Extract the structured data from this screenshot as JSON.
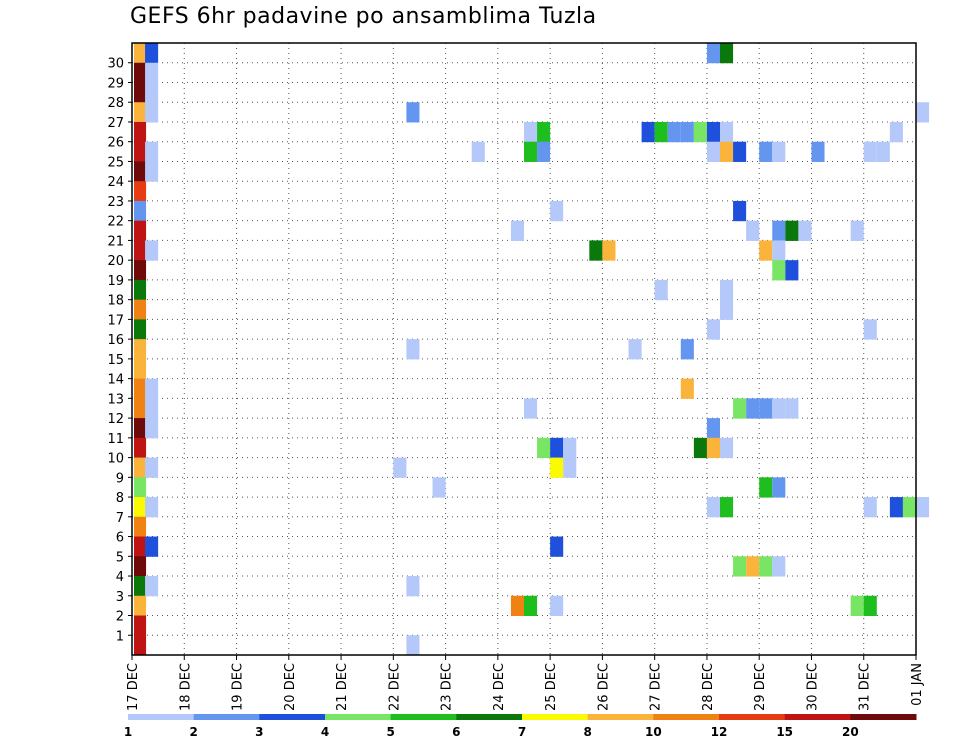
{
  "chart_data": {
    "type": "heatmap",
    "title": "GEFS 6hr padavine po ansamblima Tuzla",
    "x_start": "17 DEC",
    "x_end": "01 JAN",
    "x_ticks": [
      "17 DEC",
      "18 DEC",
      "19 DEC",
      "20 DEC",
      "21 DEC",
      "22 DEC",
      "23 DEC",
      "24 DEC",
      "25 DEC",
      "26 DEC",
      "27 DEC",
      "28 DEC",
      "29 DEC",
      "30 DEC",
      "31 DEC",
      "01 JAN"
    ],
    "x_step_hours": 6,
    "y_ticks": [
      "1",
      "2",
      "3",
      "4",
      "5",
      "6",
      "7",
      "8",
      "9",
      "10",
      "11",
      "12",
      "13",
      "14",
      "15",
      "16",
      "17",
      "18",
      "19",
      "20",
      "21",
      "22",
      "23",
      "24",
      "25",
      "26",
      "27",
      "28",
      "29",
      "30"
    ],
    "grid": true,
    "legend_position": "bottom",
    "levels": [
      {
        "label": "1",
        "color": "#b4c8fa"
      },
      {
        "label": "2",
        "color": "#6496f0"
      },
      {
        "label": "3",
        "color": "#1e50dc"
      },
      {
        "label": "4",
        "color": "#78e664"
      },
      {
        "label": "5",
        "color": "#1ebe1e"
      },
      {
        "label": "6",
        "color": "#0a780a"
      },
      {
        "label": "7",
        "color": "#fafa00"
      },
      {
        "label": "8",
        "color": "#fab43c"
      },
      {
        "label": "10",
        "color": "#f08214"
      },
      {
        "label": "12",
        "color": "#e63c14"
      },
      {
        "label": "15",
        "color": "#be1414"
      },
      {
        "label": "20",
        "color": "#6e0a0a"
      }
    ],
    "cells": [
      {
        "member": 30,
        "step": 0,
        "level": 7
      },
      {
        "member": 30,
        "step": 1,
        "level": 2
      },
      {
        "member": 30,
        "step": 44,
        "level": 1
      },
      {
        "member": 30,
        "step": 45,
        "level": 5
      },
      {
        "member": 29,
        "step": 0,
        "level": 11
      },
      {
        "member": 29,
        "step": 1,
        "level": 0
      },
      {
        "member": 28,
        "step": 0,
        "level": 11
      },
      {
        "member": 28,
        "step": 1,
        "level": 0
      },
      {
        "member": 27,
        "step": 0,
        "level": 7
      },
      {
        "member": 27,
        "step": 1,
        "level": 0
      },
      {
        "member": 27,
        "step": 21,
        "level": 1
      },
      {
        "member": 27,
        "step": 60,
        "level": 0
      },
      {
        "member": 26,
        "step": 0,
        "level": 10
      },
      {
        "member": 26,
        "step": 30,
        "level": 0
      },
      {
        "member": 26,
        "step": 31,
        "level": 4
      },
      {
        "member": 26,
        "step": 39,
        "level": 2
      },
      {
        "member": 26,
        "step": 40,
        "level": 4
      },
      {
        "member": 26,
        "step": 41,
        "level": 1
      },
      {
        "member": 26,
        "step": 42,
        "level": 1
      },
      {
        "member": 26,
        "step": 43,
        "level": 3
      },
      {
        "member": 26,
        "step": 44,
        "level": 2
      },
      {
        "member": 26,
        "step": 45,
        "level": 0
      },
      {
        "member": 26,
        "step": 58,
        "level": 0
      },
      {
        "member": 25,
        "step": 0,
        "level": 10
      },
      {
        "member": 25,
        "step": 1,
        "level": 0
      },
      {
        "member": 25,
        "step": 26,
        "level": 0
      },
      {
        "member": 25,
        "step": 30,
        "level": 4
      },
      {
        "member": 25,
        "step": 31,
        "level": 1
      },
      {
        "member": 25,
        "step": 44,
        "level": 0
      },
      {
        "member": 25,
        "step": 45,
        "level": 7
      },
      {
        "member": 25,
        "step": 46,
        "level": 2
      },
      {
        "member": 25,
        "step": 48,
        "level": 1
      },
      {
        "member": 25,
        "step": 49,
        "level": 0
      },
      {
        "member": 25,
        "step": 52,
        "level": 1
      },
      {
        "member": 25,
        "step": 56,
        "level": 0
      },
      {
        "member": 25,
        "step": 57,
        "level": 0
      },
      {
        "member": 24,
        "step": 0,
        "level": 11
      },
      {
        "member": 24,
        "step": 1,
        "level": 0
      },
      {
        "member": 23,
        "step": 0,
        "level": 9
      },
      {
        "member": 22,
        "step": 0,
        "level": 1
      },
      {
        "member": 22,
        "step": 32,
        "level": 0
      },
      {
        "member": 22,
        "step": 46,
        "level": 2
      },
      {
        "member": 21,
        "step": 0,
        "level": 10
      },
      {
        "member": 21,
        "step": 29,
        "level": 0
      },
      {
        "member": 21,
        "step": 47,
        "level": 0
      },
      {
        "member": 21,
        "step": 49,
        "level": 1
      },
      {
        "member": 21,
        "step": 50,
        "level": 5
      },
      {
        "member": 21,
        "step": 51,
        "level": 0
      },
      {
        "member": 21,
        "step": 55,
        "level": 0
      },
      {
        "member": 20,
        "step": 0,
        "level": 10
      },
      {
        "member": 20,
        "step": 1,
        "level": 0
      },
      {
        "member": 20,
        "step": 35,
        "level": 5
      },
      {
        "member": 20,
        "step": 36,
        "level": 7
      },
      {
        "member": 20,
        "step": 48,
        "level": 7
      },
      {
        "member": 20,
        "step": 49,
        "level": 0
      },
      {
        "member": 19,
        "step": 0,
        "level": 11
      },
      {
        "member": 19,
        "step": 49,
        "level": 3
      },
      {
        "member": 19,
        "step": 50,
        "level": 2
      },
      {
        "member": 18,
        "step": 0,
        "level": 5
      },
      {
        "member": 18,
        "step": 40,
        "level": 0
      },
      {
        "member": 18,
        "step": 45,
        "level": 0
      },
      {
        "member": 17,
        "step": 0,
        "level": 8
      },
      {
        "member": 17,
        "step": 45,
        "level": 0
      },
      {
        "member": 16,
        "step": 0,
        "level": 5
      },
      {
        "member": 16,
        "step": 44,
        "level": 0
      },
      {
        "member": 16,
        "step": 56,
        "level": 0
      },
      {
        "member": 15,
        "step": 0,
        "level": 7
      },
      {
        "member": 15,
        "step": 21,
        "level": 0
      },
      {
        "member": 15,
        "step": 38,
        "level": 0
      },
      {
        "member": 15,
        "step": 42,
        "level": 1
      },
      {
        "member": 14,
        "step": 0,
        "level": 7
      },
      {
        "member": 13,
        "step": 0,
        "level": 8
      },
      {
        "member": 13,
        "step": 1,
        "level": 0
      },
      {
        "member": 13,
        "step": 42,
        "level": 7
      },
      {
        "member": 12,
        "step": 0,
        "level": 8
      },
      {
        "member": 12,
        "step": 1,
        "level": 0
      },
      {
        "member": 12,
        "step": 30,
        "level": 0
      },
      {
        "member": 12,
        "step": 46,
        "level": 3
      },
      {
        "member": 12,
        "step": 47,
        "level": 1
      },
      {
        "member": 12,
        "step": 48,
        "level": 1
      },
      {
        "member": 12,
        "step": 49,
        "level": 0
      },
      {
        "member": 12,
        "step": 50,
        "level": 0
      },
      {
        "member": 11,
        "step": 0,
        "level": 11
      },
      {
        "member": 11,
        "step": 1,
        "level": 0
      },
      {
        "member": 11,
        "step": 44,
        "level": 1
      },
      {
        "member": 10,
        "step": 0,
        "level": 10
      },
      {
        "member": 10,
        "step": 31,
        "level": 3
      },
      {
        "member": 10,
        "step": 32,
        "level": 2
      },
      {
        "member": 10,
        "step": 33,
        "level": 0
      },
      {
        "member": 10,
        "step": 43,
        "level": 5
      },
      {
        "member": 10,
        "step": 44,
        "level": 7
      },
      {
        "member": 10,
        "step": 45,
        "level": 0
      },
      {
        "member": 9,
        "step": 0,
        "level": 7
      },
      {
        "member": 9,
        "step": 1,
        "level": 0
      },
      {
        "member": 9,
        "step": 20,
        "level": 0
      },
      {
        "member": 9,
        "step": 32,
        "level": 6
      },
      {
        "member": 9,
        "step": 33,
        "level": 0
      },
      {
        "member": 8,
        "step": 0,
        "level": 3
      },
      {
        "member": 8,
        "step": 23,
        "level": 0
      },
      {
        "member": 8,
        "step": 48,
        "level": 4
      },
      {
        "member": 8,
        "step": 49,
        "level": 1
      },
      {
        "member": 7,
        "step": 0,
        "level": 6
      },
      {
        "member": 7,
        "step": 1,
        "level": 0
      },
      {
        "member": 7,
        "step": 44,
        "level": 0
      },
      {
        "member": 7,
        "step": 45,
        "level": 4
      },
      {
        "member": 7,
        "step": 56,
        "level": 0
      },
      {
        "member": 7,
        "step": 58,
        "level": 2
      },
      {
        "member": 7,
        "step": 59,
        "level": 3
      },
      {
        "member": 7,
        "step": 60,
        "level": 0
      },
      {
        "member": 6,
        "step": 0,
        "level": 8
      },
      {
        "member": 5,
        "step": 0,
        "level": 10
      },
      {
        "member": 5,
        "step": 1,
        "level": 2
      },
      {
        "member": 5,
        "step": 32,
        "level": 2
      },
      {
        "member": 4,
        "step": 0,
        "level": 11
      },
      {
        "member": 4,
        "step": 46,
        "level": 3
      },
      {
        "member": 4,
        "step": 47,
        "level": 7
      },
      {
        "member": 4,
        "step": 48,
        "level": 3
      },
      {
        "member": 4,
        "step": 49,
        "level": 0
      },
      {
        "member": 3,
        "step": 0,
        "level": 5
      },
      {
        "member": 3,
        "step": 1,
        "level": 0
      },
      {
        "member": 3,
        "step": 21,
        "level": 0
      },
      {
        "member": 2,
        "step": 0,
        "level": 7
      },
      {
        "member": 2,
        "step": 29,
        "level": 8
      },
      {
        "member": 2,
        "step": 30,
        "level": 4
      },
      {
        "member": 2,
        "step": 32,
        "level": 0
      },
      {
        "member": 2,
        "step": 55,
        "level": 3
      },
      {
        "member": 2,
        "step": 56,
        "level": 4
      },
      {
        "member": 1,
        "step": 0,
        "level": 10
      },
      {
        "member": 0,
        "step": 0,
        "level": 10
      },
      {
        "member": 0,
        "step": 21,
        "level": 0
      }
    ]
  }
}
